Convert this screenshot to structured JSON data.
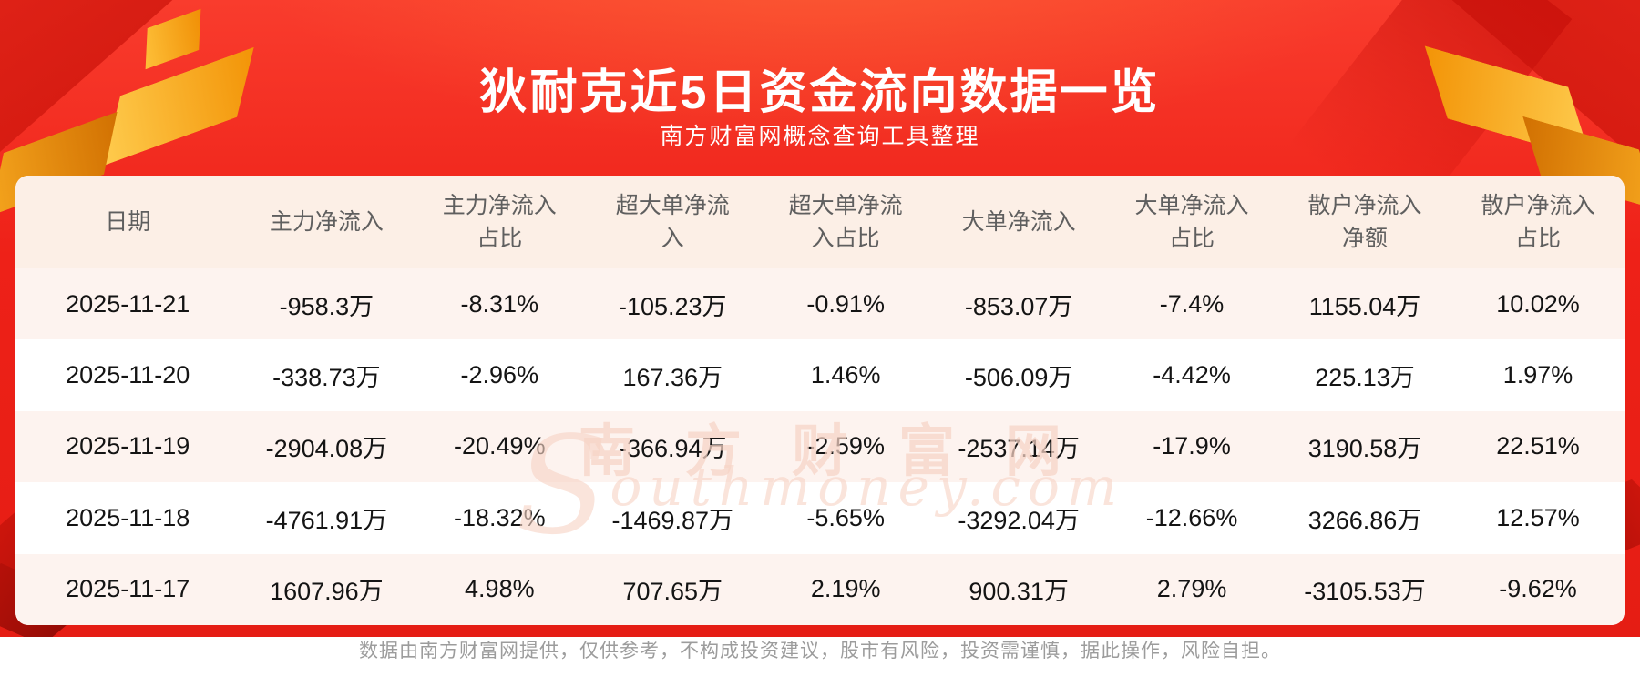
{
  "header": {
    "title": "狄耐克近5日资金流向数据一览",
    "subtitle": "南方财富网概念查询工具整理"
  },
  "watermark": {
    "line1": "南方财富网",
    "line2_initial": "S",
    "line2_rest": "outhmoney.com"
  },
  "chart_data": {
    "type": "table",
    "title": "狄耐克近5日资金流向数据一览",
    "columns": [
      "日期",
      "主力净流入",
      "主力净流入\n占比",
      "超大单净流\n入",
      "超大单净流\n入占比",
      "大单净流入",
      "大单净流入\n占比",
      "散户净流入\n净额",
      "散户净流入\n占比"
    ],
    "rows": [
      [
        "2025-11-21",
        "-958.3万",
        "-8.31%",
        "-105.23万",
        "-0.91%",
        "-853.07万",
        "-7.4%",
        "1155.04万",
        "10.02%"
      ],
      [
        "2025-11-20",
        "-338.73万",
        "-2.96%",
        "167.36万",
        "1.46%",
        "-506.09万",
        "-4.42%",
        "225.13万",
        "1.97%"
      ],
      [
        "2025-11-19",
        "-2904.08万",
        "-20.49%",
        "-366.94万",
        "-2.59%",
        "-2537.14万",
        "-17.9%",
        "3190.58万",
        "22.51%"
      ],
      [
        "2025-11-18",
        "-4761.91万",
        "-18.32%",
        "-1469.87万",
        "-5.65%",
        "-3292.04万",
        "-12.66%",
        "3266.86万",
        "12.57%"
      ],
      [
        "2025-11-17",
        "1607.96万",
        "4.98%",
        "707.65万",
        "2.19%",
        "900.31万",
        "2.79%",
        "-3105.53万",
        "-9.62%"
      ]
    ]
  },
  "footer": {
    "disclaimer": "数据由南方财富网提供，仅供参考，不构成投资建议，股市有风险，投资需谨慎，据此操作，风险自担。"
  },
  "colors": {
    "background_red": "#ee2118",
    "accent_gold": "#f29002",
    "header_row_bg": "#fcefe6",
    "row_alt_bg": "#fdf3ef",
    "row_bg": "#ffffff",
    "header_text": "#5f5f5f",
    "cell_text": "#141414",
    "footer_text": "#9c9c9c",
    "watermark_pink": "#f7d4c6"
  }
}
